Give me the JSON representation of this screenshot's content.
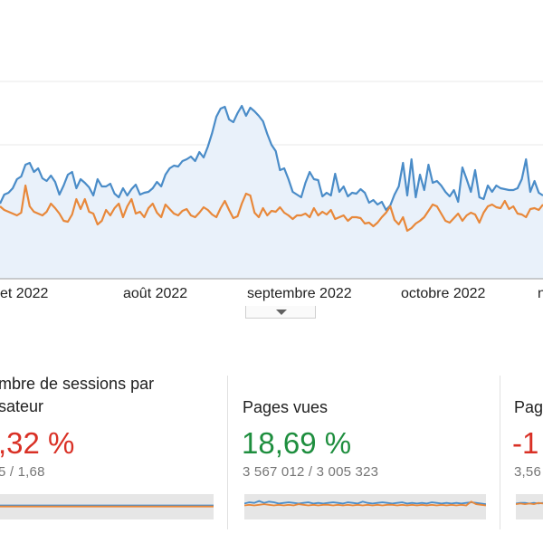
{
  "chart": {
    "axis_labels": [
      "et 2022",
      "août 2022",
      "septembre 2022",
      "octobre 2022",
      "n"
    ],
    "colors": {
      "blue": "#4a8cc8",
      "orange": "#e8883a",
      "fill": "#e9f1fa",
      "grid": "#e8e8e8"
    },
    "chart_data": {
      "type": "line",
      "series": [
        {
          "values": [
            225,
            215,
            213,
            208,
            198,
            195,
            182,
            180,
            190,
            186,
            197,
            200,
            194,
            201,
            215,
            205,
            193,
            190,
            208,
            198,
            202,
            207,
            216,
            198,
            206,
            206,
            203,
            214,
            218,
            208,
            216,
            209,
            204,
            215,
            213,
            212,
            208,
            201,
            206,
            193,
            186,
            183,
            184,
            178,
            176,
            173,
            178,
            168,
            174,
            162,
            147,
            129,
            120,
            118,
            132,
            135,
            125,
            117,
            128,
            119,
            123,
            128,
            134,
            148,
            160,
            167,
            188,
            186,
            198,
            212,
            215,
            218,
            202,
            190,
            198,
            199,
            217,
            213,
            216,
            192,
            212,
            206,
            217,
            213,
            214,
            209,
            213,
            224,
            221,
            226,
            223,
            232,
            227,
            215,
            206,
            180,
            216,
            176,
            218,
            193,
            210,
            182,
            202,
            200,
            205,
            212,
            217,
            210,
            223,
            185,
            198,
            212,
            188,
            218,
            220,
            205,
            212,
            205,
            208,
            209,
            210,
            210,
            208,
            198,
            176,
            212,
            200,
            213,
            216
          ]
        },
        {
          "values": [
            228,
            232,
            234,
            236,
            238,
            235,
            205,
            228,
            234,
            236,
            238,
            234,
            225,
            230,
            236,
            244,
            245,
            237,
            220,
            231,
            220,
            234,
            236,
            248,
            244,
            232,
            238,
            230,
            225,
            240,
            228,
            220,
            236,
            234,
            240,
            230,
            225,
            235,
            240,
            226,
            231,
            236,
            238,
            233,
            231,
            238,
            240,
            235,
            229,
            232,
            237,
            240,
            230,
            222,
            232,
            241,
            239,
            225,
            214,
            216,
            235,
            240,
            230,
            238,
            233,
            234,
            229,
            235,
            238,
            242,
            238,
            238,
            236,
            240,
            230,
            238,
            234,
            237,
            232,
            242,
            240,
            238,
            244,
            240,
            240,
            241,
            247,
            246,
            250,
            246,
            240,
            235,
            228,
            243,
            248,
            240,
            255,
            252,
            247,
            244,
            240,
            233,
            226,
            228,
            236,
            244,
            246,
            241,
            236,
            244,
            238,
            235,
            237,
            246,
            235,
            228,
            226,
            229,
            230,
            222,
            231,
            228,
            236,
            237,
            240,
            231,
            230,
            232,
            226
          ]
        }
      ],
      "ylim": [
        0,
        330
      ]
    }
  },
  "cards": [
    {
      "title_lines": [
        "mbre de sessions par",
        "sateur"
      ],
      "pct": ",32 %",
      "pct_color": "#d93025",
      "values": "5 / 1,68",
      "chart_data": {
        "type": "line",
        "series": [
          {
            "values": [
              3,
              3,
              3,
              3,
              3,
              3,
              3,
              3,
              3,
              3,
              3,
              3,
              3,
              3,
              3,
              3,
              3,
              3,
              3,
              3,
              3,
              3,
              3,
              3,
              3,
              3,
              3,
              3,
              3,
              3
            ]
          },
          {
            "values": [
              2,
              2,
              2,
              2,
              2,
              2,
              2,
              2,
              2,
              2,
              2,
              2,
              2,
              2,
              2,
              2,
              2,
              2,
              2,
              2,
              2,
              2,
              2,
              2,
              2,
              2,
              2,
              2,
              2,
              2
            ]
          }
        ],
        "ylim": [
          0,
          12
        ]
      }
    },
    {
      "title_lines": [
        "Pages vues"
      ],
      "pct": "18,69 %",
      "pct_color": "#1e8e3e",
      "values": "3 567 012 / 3 005 323",
      "chart_data": {
        "type": "line",
        "series": [
          {
            "values": [
              8,
              10,
              9,
              12,
              9,
              11,
              10,
              8,
              9,
              10,
              9,
              8,
              9,
              10,
              8,
              9,
              8,
              9,
              10,
              9,
              8,
              10,
              9,
              8,
              11,
              9,
              8,
              9,
              10,
              9,
              8,
              9,
              10,
              8,
              9,
              8,
              9,
              8,
              10,
              9,
              8,
              9,
              8,
              9,
              8,
              9,
              10,
              9,
              8,
              7
            ]
          },
          {
            "values": [
              5,
              6,
              5,
              6,
              7,
              6,
              5,
              6,
              5,
              6,
              5,
              7,
              6,
              5,
              6,
              5,
              6,
              6,
              5,
              6,
              5,
              6,
              5,
              6,
              5,
              6,
              5,
              6,
              5,
              6,
              6,
              5,
              6,
              5,
              6,
              5,
              6,
              5,
              6,
              5,
              6,
              5,
              6,
              5,
              6,
              5,
              11,
              7,
              6,
              5
            ]
          }
        ],
        "ylim": [
          0,
          20
        ]
      }
    },
    {
      "title_lines": [
        "Pag"
      ],
      "pct": "-1",
      "pct_color": "#d93025",
      "values": "3,56",
      "chart_data": {
        "type": "line",
        "series": [
          {
            "values": [
              8,
              9,
              9,
              8,
              9,
              8,
              9
            ]
          },
          {
            "values": [
              7,
              8,
              7,
              8,
              7,
              9,
              8
            ]
          }
        ],
        "ylim": [
          0,
          20
        ]
      }
    }
  ]
}
